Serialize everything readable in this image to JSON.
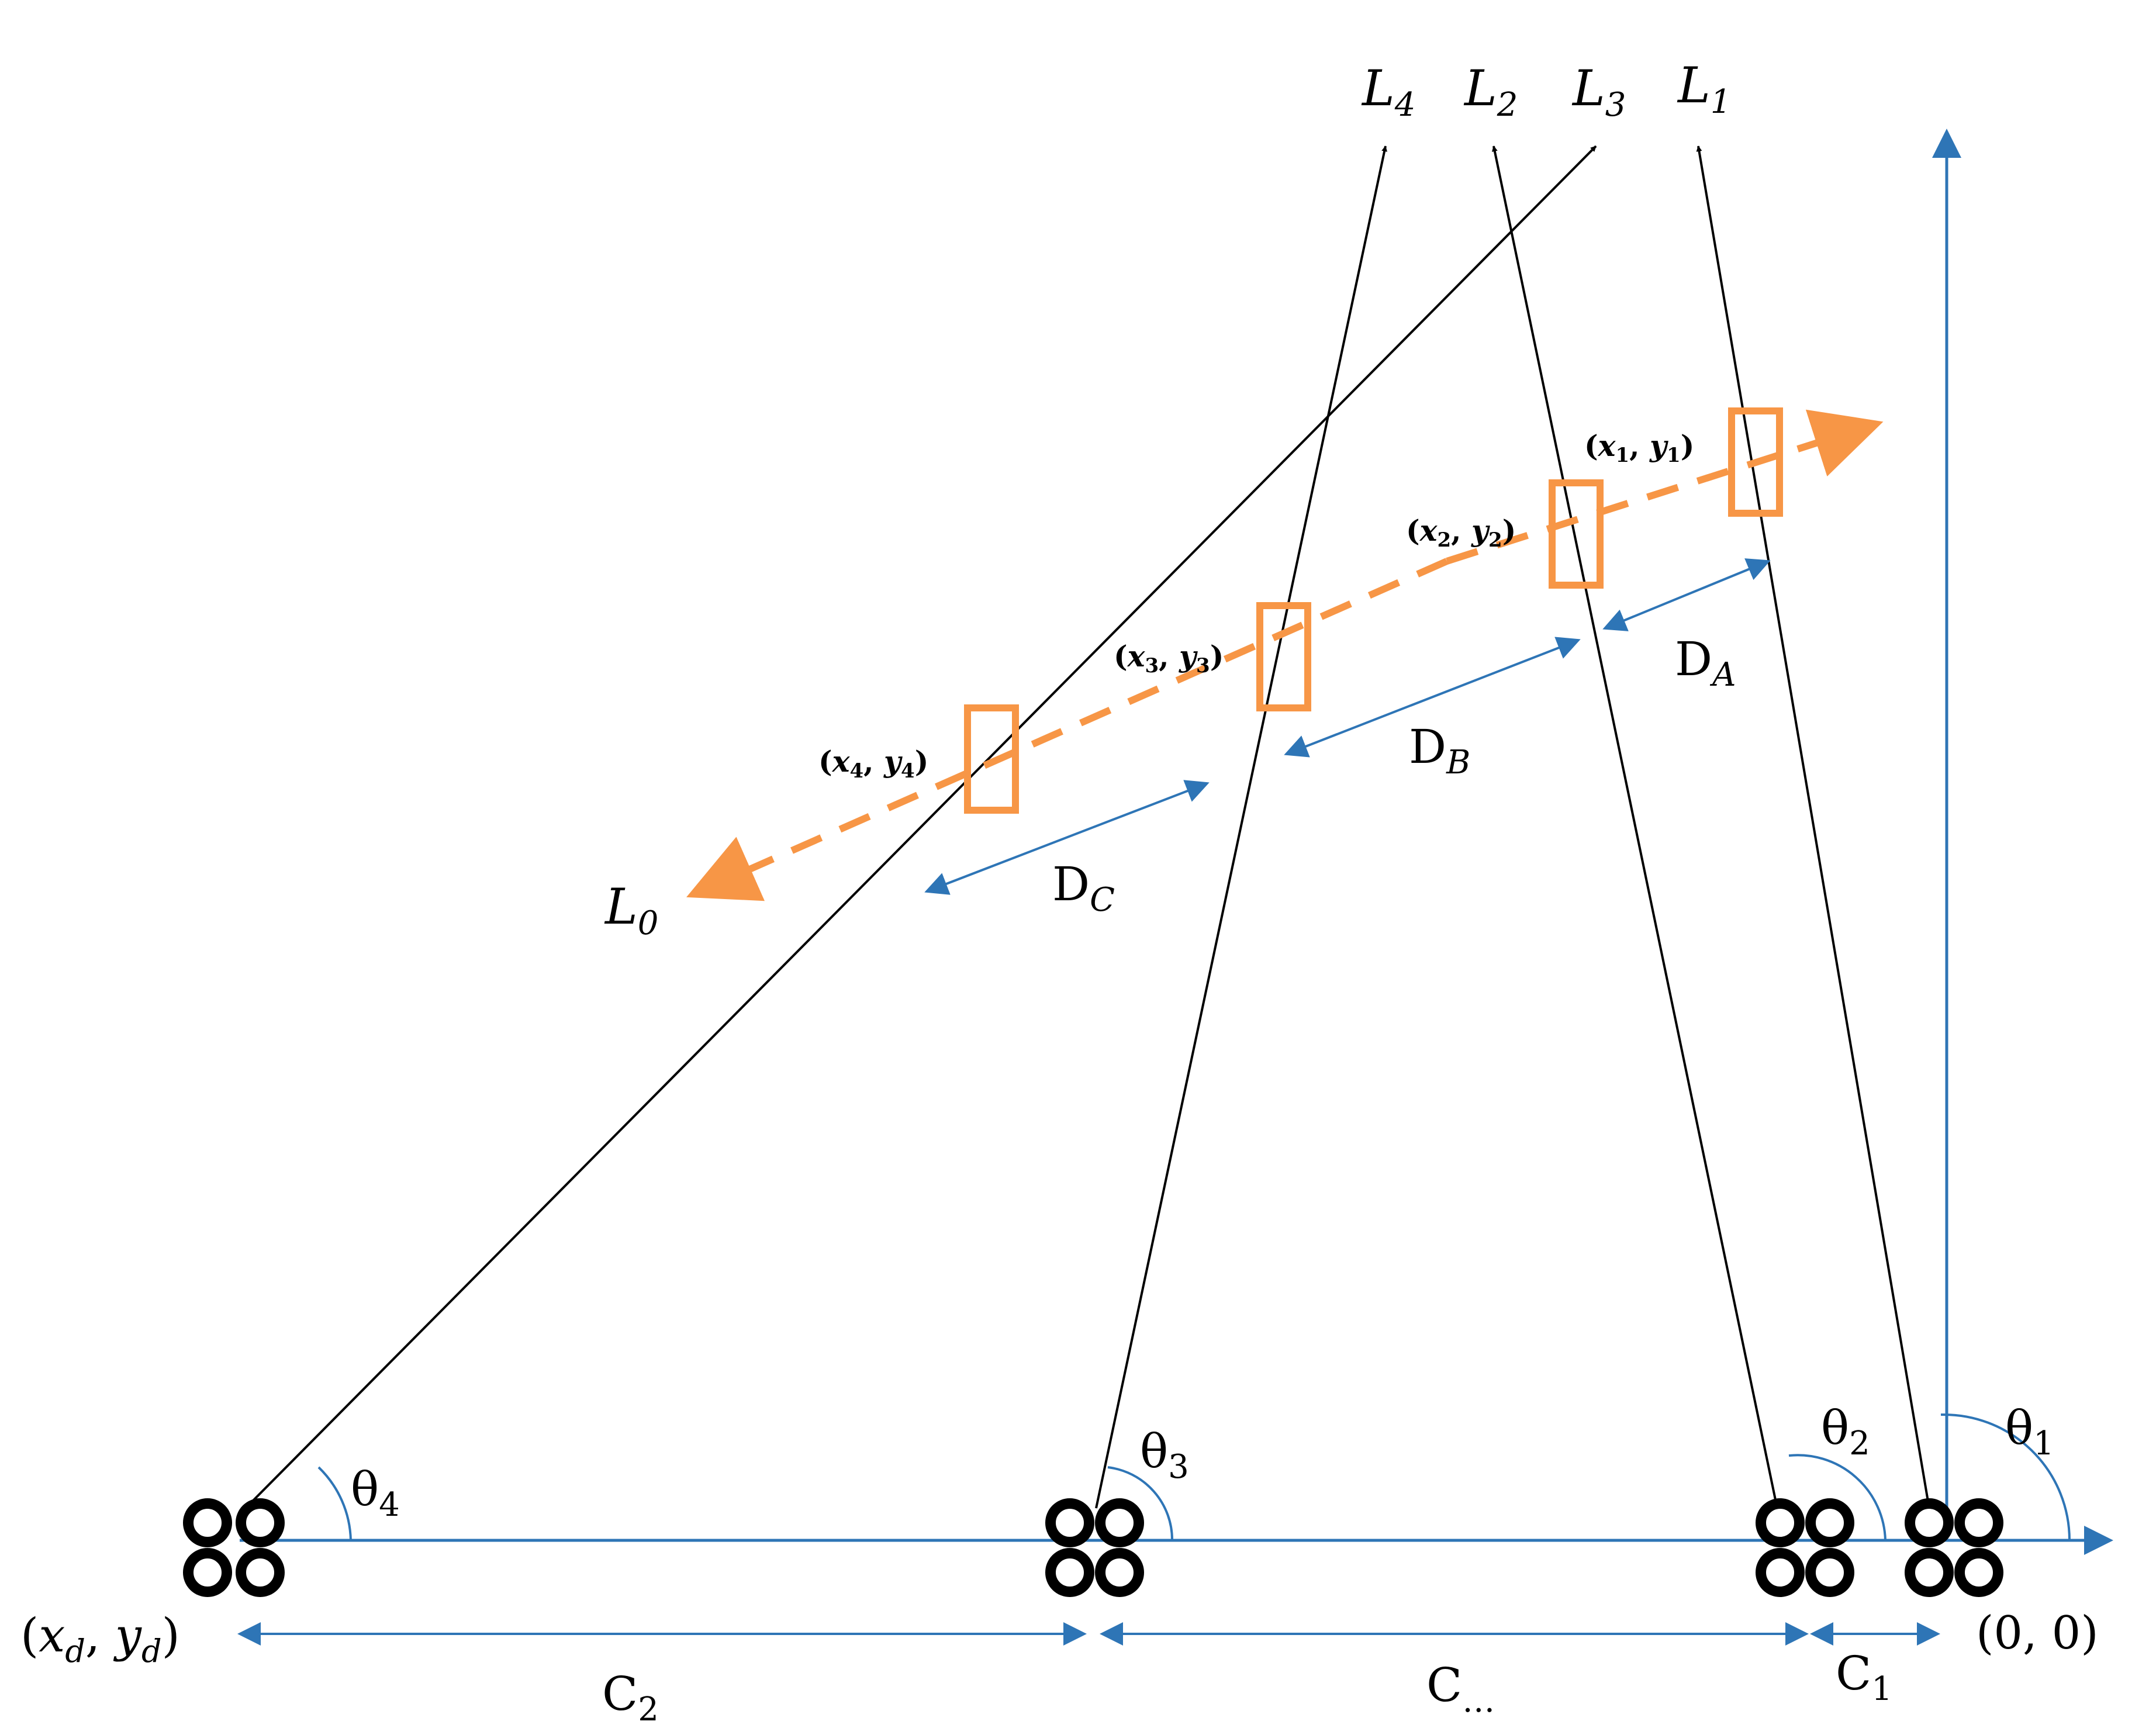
{
  "colors": {
    "axis": "#2E75B6",
    "orange": "#F79646",
    "black": "#000000"
  },
  "line_labels": {
    "L4": {
      "main": "L",
      "sub": "4"
    },
    "L2": {
      "main": "L",
      "sub": "2"
    },
    "L3": {
      "main": "L",
      "sub": "3"
    },
    "L1": {
      "main": "L",
      "sub": "1"
    },
    "L0": {
      "main": "L",
      "sub": "0"
    }
  },
  "points": {
    "p1": {
      "open": "(",
      "x": "x",
      "xs": "1",
      "sep": ", ",
      "y": "y",
      "ys": "1",
      "close": ")"
    },
    "p2": {
      "open": "(",
      "x": "x",
      "xs": "2",
      "sep": ", ",
      "y": "y",
      "ys": "2",
      "close": ")"
    },
    "p3": {
      "open": "(",
      "x": "x",
      "xs": "3",
      "sep": ", ",
      "y": "y",
      "ys": "3",
      "close": ")"
    },
    "p4": {
      "open": "(",
      "x": "x",
      "xs": "4",
      "sep": ", ",
      "y": "y",
      "ys": "4",
      "close": ")"
    }
  },
  "distances": {
    "DA": {
      "main": "D",
      "sub": "A"
    },
    "DB": {
      "main": "D",
      "sub": "B"
    },
    "DC": {
      "main": "D",
      "sub": "C"
    }
  },
  "angles": {
    "t1": {
      "main": "θ",
      "sub": "1"
    },
    "t2": {
      "main": "θ",
      "sub": "2"
    },
    "t3": {
      "main": "θ",
      "sub": "3"
    },
    "t4": {
      "main": "θ",
      "sub": "4"
    }
  },
  "spacings": {
    "C2": {
      "main": "C",
      "sub": "2"
    },
    "Cdots": {
      "main": "C",
      "sub": "…"
    },
    "C1": {
      "main": "C",
      "sub": "1"
    }
  },
  "origin": {
    "text": "(0, 0)"
  },
  "drone_coord": {
    "open": "(",
    "x": "x",
    "xs": "d",
    "sep": ", ",
    "y": "y",
    "ys": "d",
    "close": ")"
  }
}
